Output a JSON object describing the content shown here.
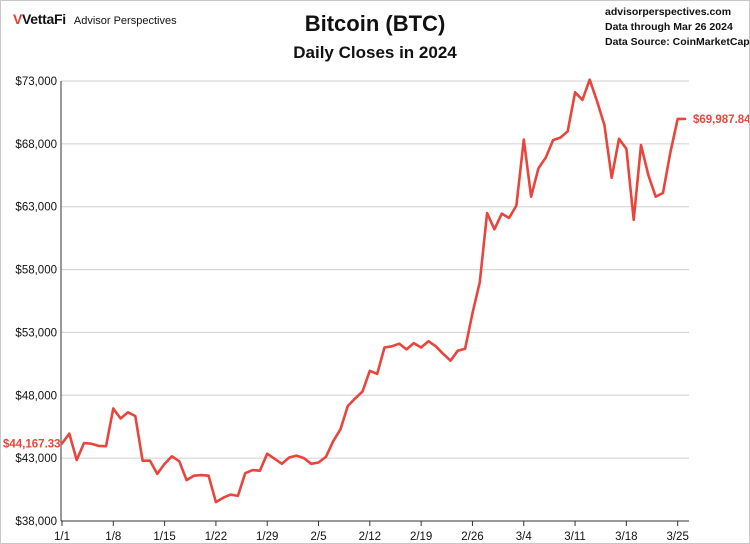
{
  "header": {
    "brand_name": "VettaFi",
    "brand_sub": "Advisor Perspectives",
    "site": "advisorperspectives.com",
    "data_through": "Data through Mar 26 2024",
    "source": "Data Source: CoinMarketCap"
  },
  "colors": {
    "line": "#e8453c",
    "grid": "#d0d0d0",
    "axis": "#333333"
  },
  "chart_data": {
    "type": "line",
    "title": "Bitcoin (BTC)",
    "subtitle": "Daily Closes in 2024",
    "xlabel": "",
    "ylabel": "",
    "ylim": [
      38000,
      73000
    ],
    "y_ticks": [
      "$38,000",
      "$43,000",
      "$48,000",
      "$53,000",
      "$58,000",
      "$63,000",
      "$68,000",
      "$73,000"
    ],
    "y_tick_values": [
      38000,
      43000,
      48000,
      53000,
      58000,
      63000,
      68000,
      73000
    ],
    "x_ticks": [
      "1/1",
      "1/8",
      "1/15",
      "1/22",
      "1/29",
      "2/5",
      "2/12",
      "2/19",
      "2/26",
      "3/4",
      "3/11",
      "3/18",
      "3/25"
    ],
    "grid": "horizontal",
    "start_label": "$44,167.33",
    "end_label": "$69,987.84",
    "series": [
      {
        "dates": [
          "1/1",
          "1/2",
          "1/3",
          "1/4",
          "1/5",
          "1/6",
          "1/7",
          "1/8",
          "1/9",
          "1/10",
          "1/11",
          "1/12",
          "1/13",
          "1/14",
          "1/15",
          "1/16",
          "1/17",
          "1/18",
          "1/19",
          "1/20",
          "1/21",
          "1/22",
          "1/23",
          "1/24",
          "1/25",
          "1/26",
          "1/27",
          "1/28",
          "1/29",
          "1/30",
          "1/31",
          "2/1",
          "2/2",
          "2/3",
          "2/4",
          "2/5",
          "2/6",
          "2/7",
          "2/8",
          "2/9",
          "2/10",
          "2/11",
          "2/12",
          "2/13",
          "2/14",
          "2/15",
          "2/16",
          "2/17",
          "2/18",
          "2/19",
          "2/20",
          "2/21",
          "2/22",
          "2/23",
          "2/24",
          "2/25",
          "2/26",
          "2/27",
          "2/28",
          "2/29",
          "3/1",
          "3/2",
          "3/3",
          "3/4",
          "3/5",
          "3/6",
          "3/7",
          "3/8",
          "3/9",
          "3/10",
          "3/11",
          "3/12",
          "3/13",
          "3/14",
          "3/15",
          "3/16",
          "3/17",
          "3/18",
          "3/19",
          "3/20",
          "3/21",
          "3/22",
          "3/23",
          "3/24",
          "3/25",
          "3/26"
        ],
        "values": [
          44167.33,
          44950,
          42850,
          44200,
          44150,
          43970,
          43950,
          46950,
          46150,
          46650,
          46350,
          42800,
          42800,
          41750,
          42550,
          43150,
          42750,
          41250,
          41600,
          41650,
          41600,
          39500,
          39850,
          40100,
          40000,
          41800,
          42050,
          42000,
          43350,
          42950,
          42550,
          43050,
          43200,
          43000,
          42550,
          42650,
          43100,
          44350,
          45300,
          47150,
          47750,
          48300,
          49950,
          49700,
          51800,
          51900,
          52100,
          51650,
          52150,
          51800,
          52300,
          51900,
          51300,
          50750,
          51550,
          51700,
          54500,
          57000,
          62500,
          61200,
          62450,
          62100,
          63100,
          68350,
          63800,
          66050,
          66900,
          68300,
          68500,
          69000,
          72100,
          71500,
          73100,
          71400,
          69500,
          65300,
          68400,
          67600,
          61950,
          67900,
          65500,
          63800,
          64100,
          67300,
          69987.84,
          69987.84
        ]
      }
    ]
  }
}
